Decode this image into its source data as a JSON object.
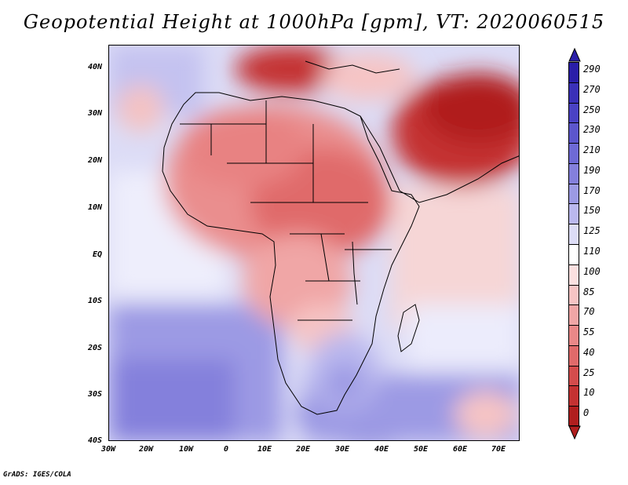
{
  "title": "Geopotential Height at 1000hPa [gpm], VT: 2020060515",
  "credit": "GrADS: IGES/COLA",
  "map": {
    "lat_ticks": [
      "40N",
      "30N",
      "20N",
      "10N",
      "EQ",
      "10S",
      "20S",
      "30S",
      "40S"
    ],
    "lon_ticks": [
      "30W",
      "20W",
      "10W",
      "0",
      "10E",
      "20E",
      "30E",
      "40E",
      "50E",
      "60E",
      "70E"
    ]
  },
  "colorbar": {
    "levels": [
      "290",
      "270",
      "250",
      "230",
      "210",
      "190",
      "170",
      "150",
      "125",
      "110",
      "100",
      "85",
      "70",
      "55",
      "40",
      "25",
      "10",
      "0"
    ],
    "colors": [
      "#2a1ea8",
      "#3a30b8",
      "#4a42c4",
      "#5c56cc",
      "#6e6ad6",
      "#8480dc",
      "#9c9ae4",
      "#bab8ee",
      "#dcdcf6",
      "#ffffff",
      "#fbe0e0",
      "#f6c4c4",
      "#f0a6a6",
      "#ea8888",
      "#e06a6a",
      "#d44c4c",
      "#c43232",
      "#b01e1e"
    ]
  }
}
